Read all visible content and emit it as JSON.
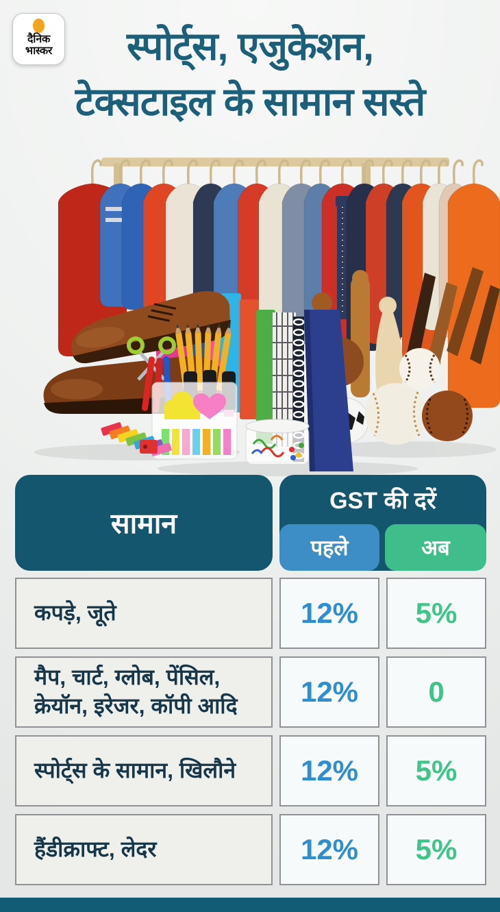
{
  "logo": {
    "line1": "दैनिक",
    "line2": "भास्कर"
  },
  "title": {
    "line1": "स्पोर्ट्स, एजुकेशन,",
    "line2": "टेक्सटाइल के सामान सस्ते"
  },
  "illustration_caption": "clothes rack with garments, leather shoes, stationery, notebooks, sports equipment",
  "table": {
    "item_header": "सामान",
    "rates_header": "GST की दरें",
    "col_before": "पहले",
    "col_now": "अब",
    "rows": [
      {
        "item": "कपड़े, जूते",
        "before": "12%",
        "now": "5%"
      },
      {
        "item": "मैप, चार्ट, ग्लोब, पेंसिल,\nक्रेयॉन, इरेजर, कॉपी आदि",
        "before": "12%",
        "now": "0"
      },
      {
        "item": "स्पोर्ट्स के सामान, खिलौने",
        "before": "12%",
        "now": "5%"
      },
      {
        "item": "हैंडीक्राफ्ट, लेदर",
        "before": "12%",
        "now": "5%"
      }
    ]
  },
  "chart_data": {
    "type": "table",
    "title": "स्पोर्ट्स, एजुकेशन, टेक्सटाइल के सामान सस्ते",
    "columns": [
      "सामान",
      "GST की दरें — पहले",
      "GST की दरें — अब"
    ],
    "rows": [
      [
        "कपड़े, जूते",
        "12%",
        "5%"
      ],
      [
        "मैप, चार्ट, ग्लोब, पेंसिल, क्रेयॉन, इरेजर, कॉपी आदि",
        "12%",
        "0"
      ],
      [
        "स्पोर्ट्स के सामान, खिलौने",
        "12%",
        "5%"
      ],
      [
        "हैंडीक्राफ्ट, लेदर",
        "12%",
        "5%"
      ]
    ]
  },
  "colors": {
    "header_teal": "#15566f",
    "title_teal": "#1c5f7a",
    "before_blue": "#3d8dc7",
    "now_green": "#3fbd8b",
    "value_blue": "#2e8ed2",
    "value_green": "#3fc489",
    "item_text": "#16374a",
    "bottom_bar": "#135c76",
    "logo_orange": "#f6a41e",
    "row_item_bg": "#efefec",
    "row_value_bg": "#f7fafa",
    "cell_border": "#8f9194"
  }
}
